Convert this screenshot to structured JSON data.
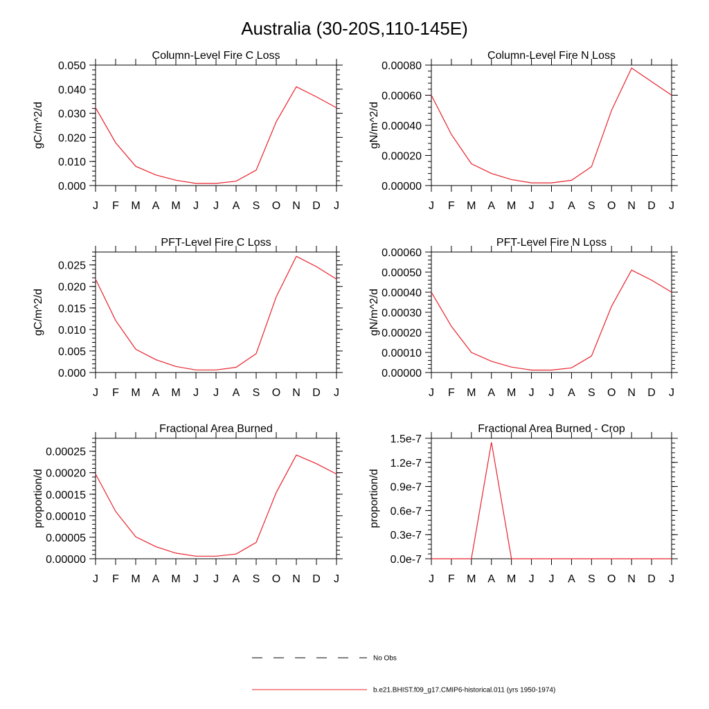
{
  "figure": {
    "title": "Australia (30-20S,110-145E)"
  },
  "colors": {
    "series": "#e8202a",
    "obs": "#000000",
    "axis": "#000000"
  },
  "legend": {
    "obs_label": "No Obs",
    "model_label": "b.e21.BHIST.f09_g17.CMIP6-historical.011 (yrs 1950-1974)"
  },
  "chart_data": [
    {
      "type": "line",
      "title": "Column-Level Fire C Loss",
      "ylabel": "gC/m^2/d",
      "categories": [
        "J",
        "F",
        "M",
        "A",
        "M",
        "J",
        "J",
        "A",
        "S",
        "O",
        "N",
        "D",
        "J"
      ],
      "ylim": [
        0,
        0.05
      ],
      "yticks": [
        0,
        0.01,
        0.02,
        0.03,
        0.04,
        0.05
      ],
      "ytick_labels": [
        "0.000",
        "0.010",
        "0.020",
        "0.030",
        "0.040",
        "0.050"
      ],
      "series": [
        {
          "name": "b.e21.BHIST.f09_g17.CMIP6-historical.011 (yrs 1950-1974)",
          "values": [
            0.0323,
            0.0178,
            0.008,
            0.0044,
            0.0022,
            0.0009,
            0.0009,
            0.0018,
            0.0064,
            0.0265,
            0.041,
            0.0368,
            0.0323
          ]
        }
      ]
    },
    {
      "type": "line",
      "title": "Column-Level Fire N Loss",
      "ylabel": "gN/m^2/d",
      "categories": [
        "J",
        "F",
        "M",
        "A",
        "M",
        "J",
        "J",
        "A",
        "S",
        "O",
        "N",
        "D",
        "J"
      ],
      "ylim": [
        0,
        0.0008
      ],
      "yticks": [
        0,
        0.0002,
        0.0004,
        0.0006,
        0.0008
      ],
      "ytick_labels": [
        "0.00000",
        "0.00020",
        "0.00040",
        "0.00060",
        "0.00080"
      ],
      "series": [
        {
          "name": "b.e21.BHIST.f09_g17.CMIP6-historical.011 (yrs 1950-1974)",
          "values": [
            0.0006,
            0.00034,
            0.000145,
            8e-05,
            4e-05,
            1.8e-05,
            1.8e-05,
            3.5e-05,
            0.000125,
            0.0005,
            0.00078,
            0.00069,
            0.0006
          ]
        }
      ]
    },
    {
      "type": "line",
      "title": "PFT-Level Fire C Loss",
      "ylabel": "gC/m^2/d",
      "categories": [
        "J",
        "F",
        "M",
        "A",
        "M",
        "J",
        "J",
        "A",
        "S",
        "O",
        "N",
        "D",
        "J"
      ],
      "ylim": [
        0,
        0.028
      ],
      "yticks": [
        0,
        0.005,
        0.01,
        0.015,
        0.02,
        0.025
      ],
      "ytick_labels": [
        "0.000",
        "0.005",
        "0.010",
        "0.015",
        "0.020",
        "0.025"
      ],
      "series": [
        {
          "name": "b.e21.BHIST.f09_g17.CMIP6-historical.011 (yrs 1950-1974)",
          "values": [
            0.0217,
            0.0121,
            0.0054,
            0.003,
            0.0014,
            0.0006,
            0.0006,
            0.0012,
            0.0044,
            0.0176,
            0.027,
            0.0246,
            0.0217
          ]
        }
      ]
    },
    {
      "type": "line",
      "title": "PFT-Level Fire N Loss",
      "ylabel": "gN/m^2/d",
      "categories": [
        "J",
        "F",
        "M",
        "A",
        "M",
        "J",
        "J",
        "A",
        "S",
        "O",
        "N",
        "D",
        "J"
      ],
      "ylim": [
        0,
        0.0006
      ],
      "yticks": [
        0,
        0.0001,
        0.0002,
        0.0003,
        0.0004,
        0.0005,
        0.0006
      ],
      "ytick_labels": [
        "0.00000",
        "0.00010",
        "0.00020",
        "0.00030",
        "0.00040",
        "0.00050",
        "0.00060"
      ],
      "series": [
        {
          "name": "b.e21.BHIST.f09_g17.CMIP6-historical.011 (yrs 1950-1974)",
          "values": [
            0.0004,
            0.00023,
            0.0001,
            5.6e-05,
            2.7e-05,
            1.2e-05,
            1.2e-05,
            2.3e-05,
            8.2e-05,
            0.00033,
            0.00051,
            0.00046,
            0.0004
          ]
        }
      ]
    },
    {
      "type": "line",
      "title": "Fractional Area Burned",
      "ylabel": "proportion/d",
      "categories": [
        "J",
        "F",
        "M",
        "A",
        "M",
        "J",
        "J",
        "A",
        "S",
        "O",
        "N",
        "D",
        "J"
      ],
      "ylim": [
        0,
        0.00028
      ],
      "yticks": [
        0,
        5e-05,
        0.0001,
        0.00015,
        0.0002,
        0.00025
      ],
      "ytick_labels": [
        "0.00000",
        "0.00005",
        "0.00010",
        "0.00015",
        "0.00020",
        "0.00025"
      ],
      "series": [
        {
          "name": "b.e21.BHIST.f09_g17.CMIP6-historical.011 (yrs 1950-1974)",
          "values": [
            0.000197,
            0.00011,
            5.1e-05,
            2.8e-05,
            1.3e-05,
            6e-06,
            6e-06,
            1.1e-05,
            3.8e-05,
            0.000154,
            0.000241,
            0.000221,
            0.000197
          ]
        }
      ]
    },
    {
      "type": "line",
      "title": "Fractional Area Burned - Crop",
      "ylabel": "proportion/d",
      "categories": [
        "J",
        "F",
        "M",
        "A",
        "M",
        "J",
        "J",
        "A",
        "S",
        "O",
        "N",
        "D",
        "J"
      ],
      "ylim": [
        0,
        1.5e-07
      ],
      "yticks": [
        0,
        3e-08,
        6e-08,
        9e-08,
        1.2e-07,
        1.5e-07
      ],
      "ytick_labels": [
        "0.0e-7",
        "0.3e-7",
        "0.6e-7",
        "0.9e-7",
        "1.2e-7",
        "1.5e-7"
      ],
      "series": [
        {
          "name": "b.e21.BHIST.f09_g17.CMIP6-historical.011 (yrs 1950-1974)",
          "values": [
            0,
            0,
            0,
            1.45e-07,
            0,
            0,
            0,
            0,
            0,
            0,
            0,
            0,
            0
          ]
        }
      ]
    }
  ]
}
